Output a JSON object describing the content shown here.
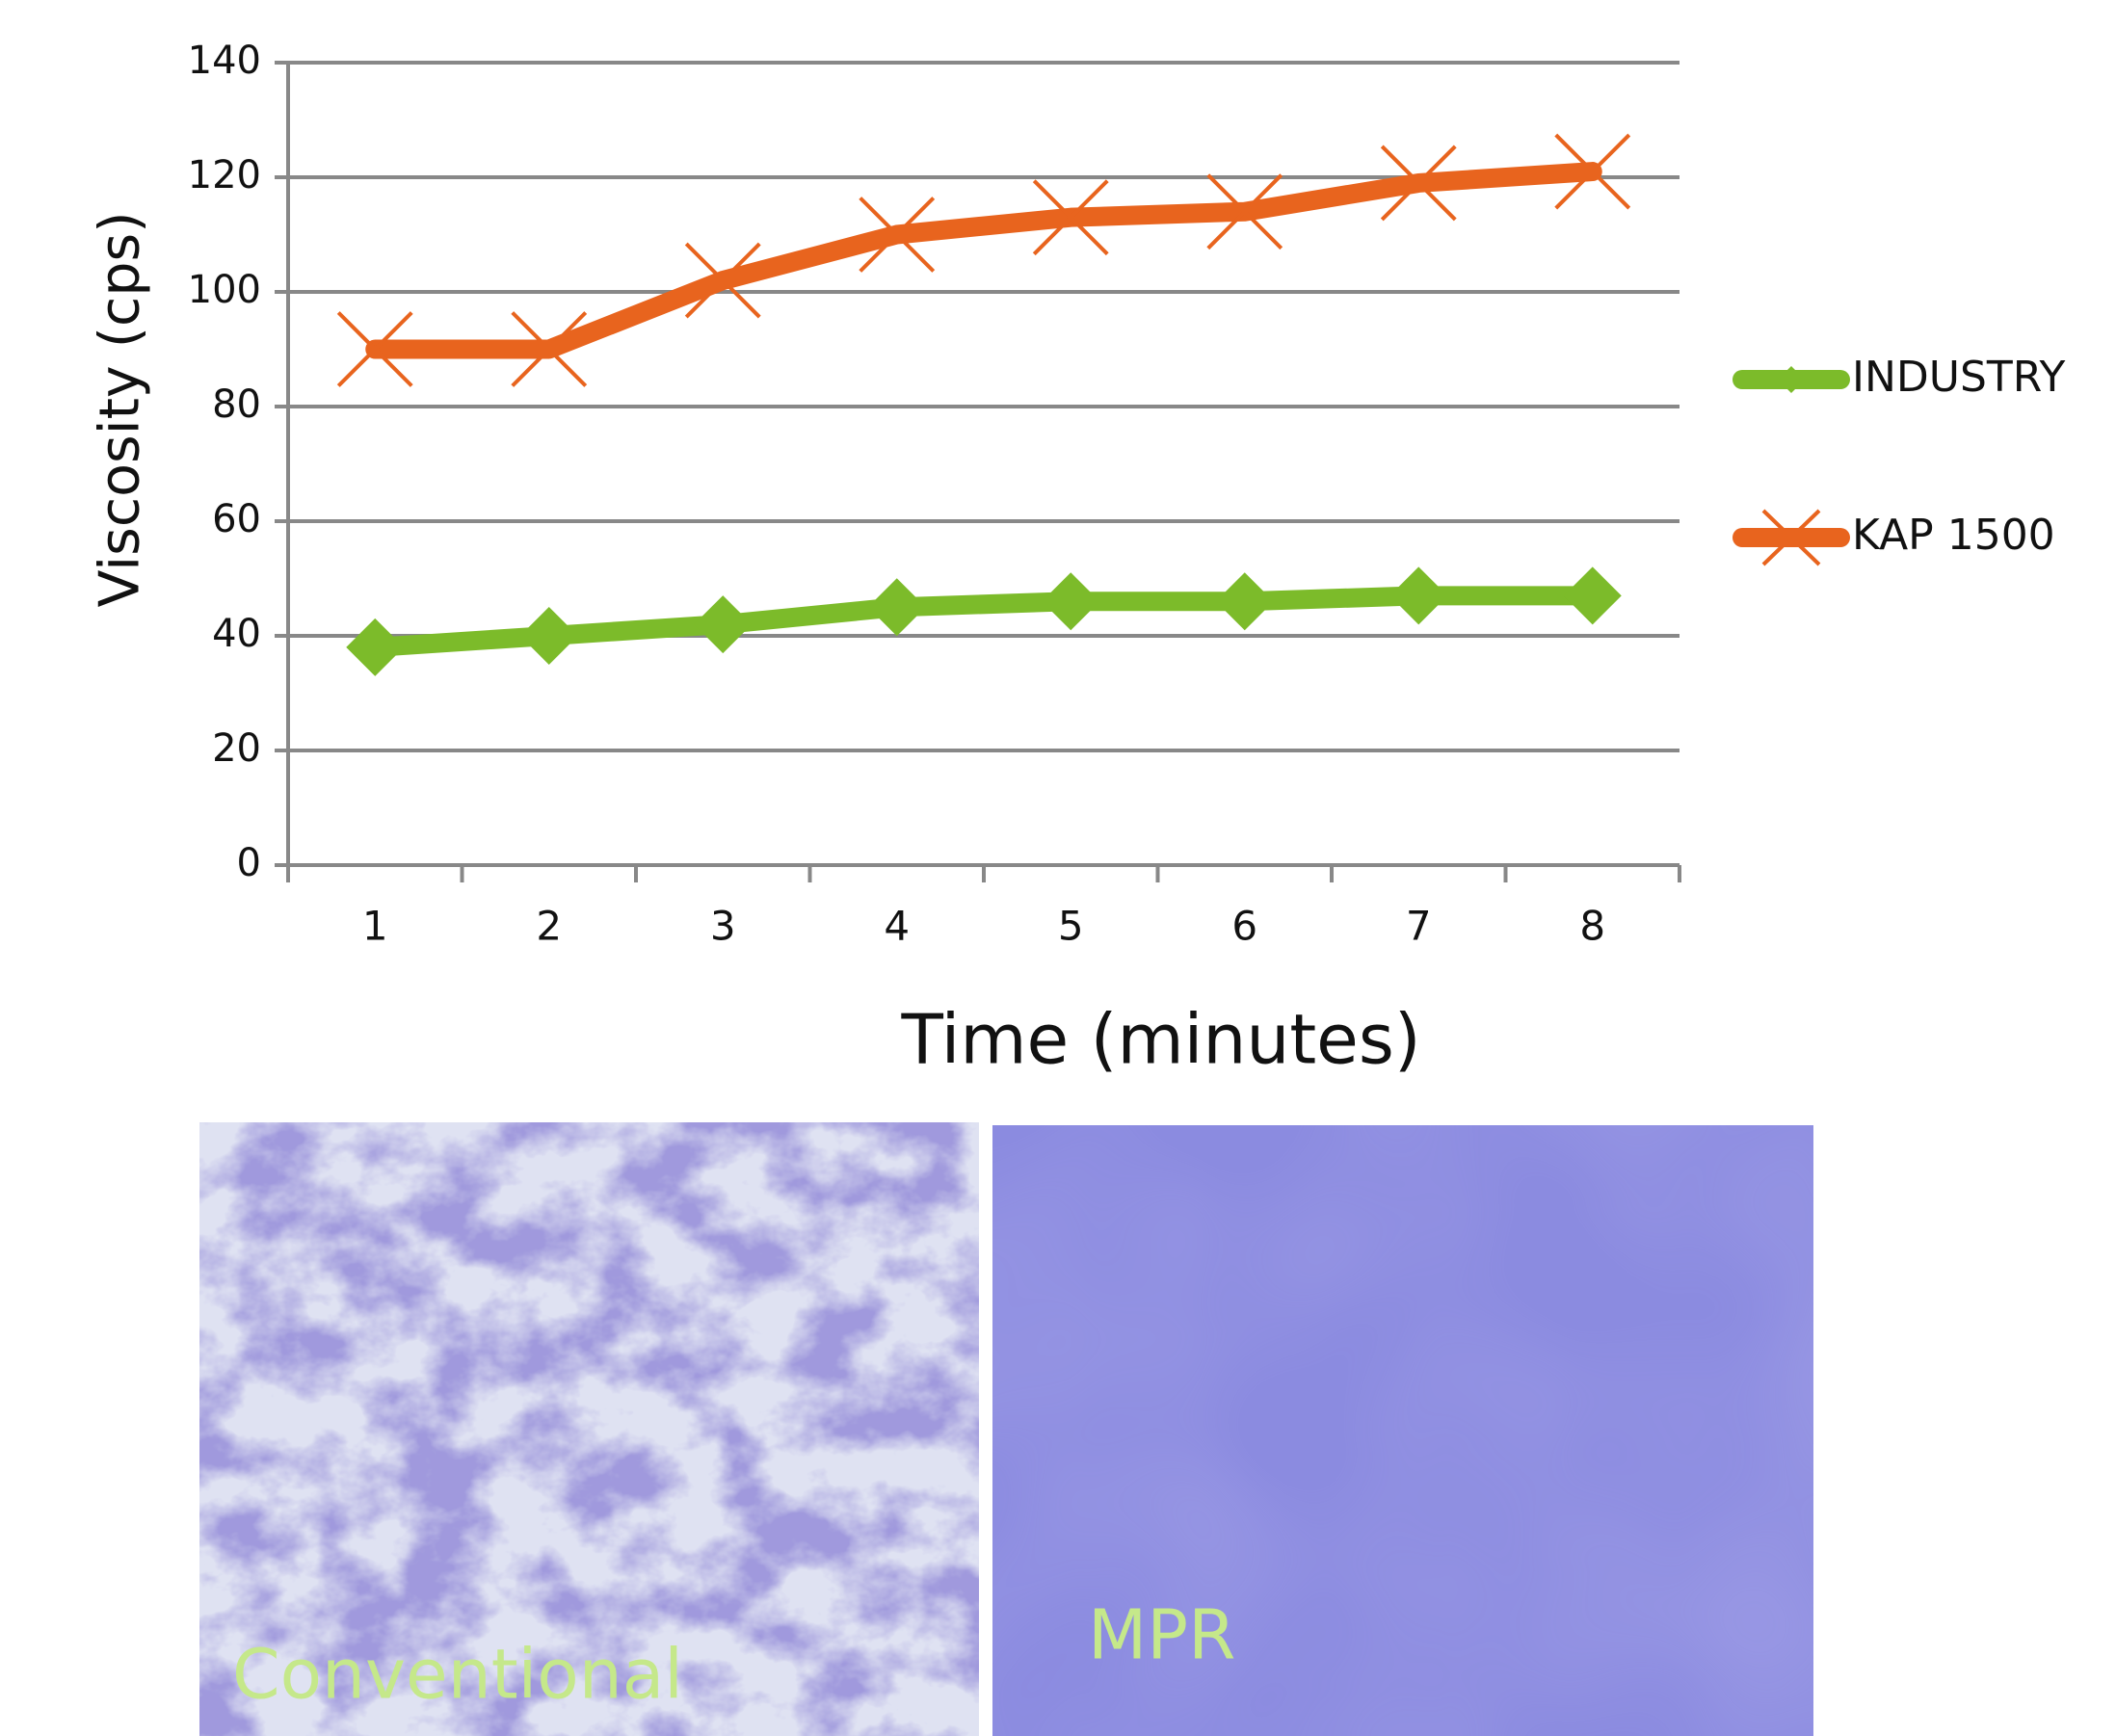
{
  "chart_data": {
    "type": "line",
    "x_label": "Time (minutes)",
    "y_label": "Viscosity (cps)",
    "categories": [
      "1",
      "2",
      "3",
      "4",
      "5",
      "6",
      "7",
      "8"
    ],
    "series": [
      {
        "name": "INDUSTRY",
        "color": "#7cbb2a",
        "marker": "diamond",
        "values": [
          38,
          40,
          42,
          45,
          46,
          46,
          47,
          47
        ]
      },
      {
        "name": "KAP 1500",
        "color": "#e8641e",
        "marker": "x",
        "values": [
          90,
          90,
          102,
          110,
          113,
          114,
          119,
          121
        ]
      }
    ],
    "ylim": [
      0,
      140
    ],
    "yticks": [
      0,
      20,
      40,
      60,
      80,
      100,
      120,
      140
    ],
    "grid": true,
    "legend": "right"
  },
  "images": [
    {
      "label": "Conventional"
    },
    {
      "label": "MPR"
    }
  ]
}
